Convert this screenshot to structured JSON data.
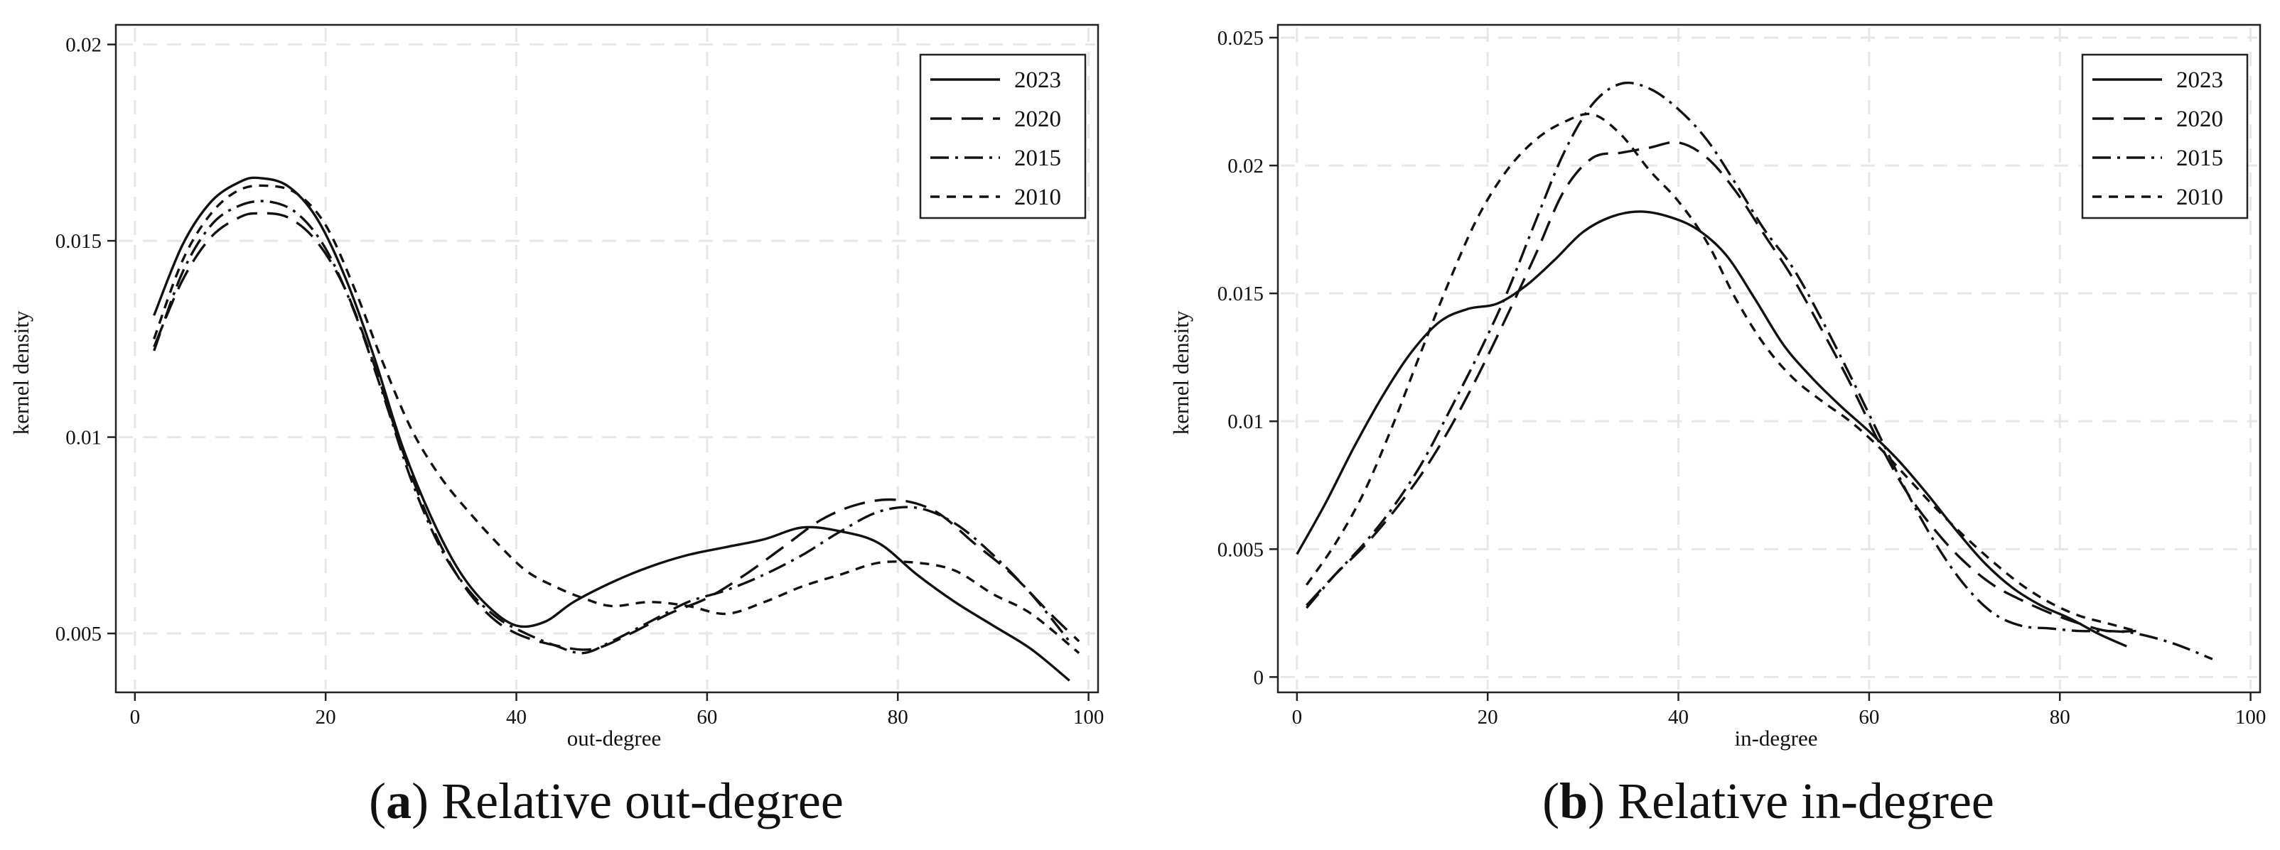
{
  "chart_data": [
    {
      "type": "line",
      "caption_letter": "a",
      "caption_text": "Relative out-degree",
      "xlabel": "out-degree",
      "ylabel": "kernel density",
      "xlim": [
        -2,
        101
      ],
      "ylim": [
        0.0035,
        0.0205
      ],
      "xticks": [
        0,
        20,
        40,
        60,
        80,
        100
      ],
      "xtick_labels": [
        "0",
        "20",
        "40",
        "60",
        "80",
        "100"
      ],
      "yticks": [
        0.005,
        0.01,
        0.015,
        0.02
      ],
      "ytick_labels": [
        "0.005",
        "0.01",
        "0.015",
        "0.02"
      ],
      "grid": true,
      "legend_position": "top-right",
      "series": [
        {
          "name": "2023",
          "dash": "solid",
          "x": [
            2,
            5,
            8,
            11,
            13,
            16,
            19,
            22,
            25,
            28,
            31,
            34,
            37,
            40,
            43,
            46,
            50,
            54,
            58,
            62,
            66,
            70,
            74,
            78,
            82,
            86,
            90,
            94,
            98
          ],
          "y": [
            0.0131,
            0.0149,
            0.016,
            0.0165,
            0.0166,
            0.0164,
            0.0156,
            0.0141,
            0.0121,
            0.0098,
            0.008,
            0.0066,
            0.0057,
            0.0052,
            0.0053,
            0.0058,
            0.0063,
            0.0067,
            0.007,
            0.0072,
            0.0074,
            0.0077,
            0.0076,
            0.0073,
            0.0065,
            0.0058,
            0.0052,
            0.0046,
            0.0038
          ]
        },
        {
          "name": "2020",
          "dash": "long",
          "x": [
            2,
            5,
            8,
            11,
            13,
            16,
            19,
            22,
            25,
            28,
            31,
            34,
            37,
            40,
            44,
            48,
            52,
            56,
            60,
            64,
            68,
            72,
            76,
            80,
            84,
            88,
            92,
            96,
            99
          ],
          "y": [
            0.0123,
            0.014,
            0.0151,
            0.0156,
            0.0157,
            0.0156,
            0.015,
            0.0138,
            0.0119,
            0.0097,
            0.0078,
            0.0064,
            0.0055,
            0.005,
            0.0047,
            0.0046,
            0.005,
            0.0055,
            0.0059,
            0.0065,
            0.0072,
            0.0079,
            0.0083,
            0.0084,
            0.0081,
            0.0073,
            0.0065,
            0.0055,
            0.0048
          ]
        },
        {
          "name": "2015",
          "dash": "dashdot",
          "x": [
            2,
            5,
            8,
            11,
            14,
            17,
            20,
            23,
            26,
            29,
            32,
            35,
            38,
            41,
            44,
            47,
            50,
            54,
            58,
            62,
            66,
            70,
            74,
            78,
            82,
            86,
            90,
            94,
            98
          ],
          "y": [
            0.0122,
            0.0142,
            0.0154,
            0.0159,
            0.016,
            0.0157,
            0.0148,
            0.0132,
            0.0111,
            0.0089,
            0.0072,
            0.0061,
            0.0054,
            0.005,
            0.0047,
            0.0045,
            0.0048,
            0.0053,
            0.0058,
            0.0061,
            0.0065,
            0.007,
            0.0076,
            0.0081,
            0.0082,
            0.0078,
            0.007,
            0.006,
            0.0048
          ]
        },
        {
          "name": "2010",
          "dash": "short",
          "x": [
            2,
            5,
            8,
            11,
            14,
            17,
            20,
            23,
            26,
            29,
            32,
            35,
            38,
            41,
            44,
            47,
            50,
            54,
            58,
            62,
            66,
            70,
            74,
            78,
            82,
            86,
            90,
            94,
            99
          ],
          "y": [
            0.0125,
            0.0145,
            0.0157,
            0.0163,
            0.0164,
            0.0162,
            0.0154,
            0.0138,
            0.0119,
            0.0102,
            0.009,
            0.0081,
            0.0073,
            0.0066,
            0.0062,
            0.0059,
            0.0057,
            0.0058,
            0.0057,
            0.0055,
            0.0058,
            0.0062,
            0.0065,
            0.0068,
            0.0068,
            0.0066,
            0.006,
            0.0055,
            0.0045
          ]
        }
      ]
    },
    {
      "type": "line",
      "caption_letter": "b",
      "caption_text": "Relative in-degree",
      "xlabel": "in-degree",
      "ylabel": "kernel density",
      "xlim": [
        -2,
        101
      ],
      "ylim": [
        -0.0006,
        0.0255
      ],
      "xticks": [
        0,
        20,
        40,
        60,
        80,
        100
      ],
      "xtick_labels": [
        "0",
        "20",
        "40",
        "60",
        "80",
        "100"
      ],
      "yticks": [
        0,
        0.005,
        0.01,
        0.015,
        0.02,
        0.025
      ],
      "ytick_labels": [
        "0",
        "0.005",
        "0.01",
        "0.015",
        "0.02",
        "0.025"
      ],
      "grid": true,
      "legend_position": "top-right",
      "series": [
        {
          "name": "2023",
          "dash": "solid",
          "x": [
            0,
            3,
            6,
            9,
            12,
            15,
            18,
            21,
            24,
            27,
            30,
            33,
            36,
            39,
            42,
            45,
            48,
            51,
            54,
            57,
            60,
            63,
            66,
            69,
            72,
            75,
            78,
            81,
            84,
            87
          ],
          "y": [
            0.0048,
            0.0068,
            0.009,
            0.011,
            0.0127,
            0.0139,
            0.0144,
            0.0146,
            0.0153,
            0.0163,
            0.0174,
            0.018,
            0.0182,
            0.018,
            0.0175,
            0.0165,
            0.0148,
            0.013,
            0.0117,
            0.0106,
            0.0096,
            0.0085,
            0.0072,
            0.0058,
            0.0045,
            0.0035,
            0.0028,
            0.0023,
            0.0017,
            0.0012
          ]
        },
        {
          "name": "2020",
          "dash": "long",
          "x": [
            1,
            4,
            7,
            10,
            13,
            16,
            19,
            22,
            25,
            28,
            31,
            34,
            37,
            40,
            43,
            46,
            49,
            52,
            55,
            58,
            61,
            64,
            67,
            70,
            73,
            76,
            79,
            82,
            85,
            88
          ],
          "y": [
            0.0028,
            0.004,
            0.0051,
            0.0064,
            0.0079,
            0.0097,
            0.0118,
            0.0141,
            0.0165,
            0.019,
            0.0203,
            0.0205,
            0.0207,
            0.0209,
            0.0203,
            0.019,
            0.0173,
            0.0156,
            0.0136,
            0.0115,
            0.0092,
            0.0072,
            0.0057,
            0.0045,
            0.0036,
            0.003,
            0.0025,
            0.0021,
            0.0018,
            0.0018
          ]
        },
        {
          "name": "2015",
          "dash": "dashdot",
          "x": [
            1,
            4,
            7,
            10,
            13,
            16,
            19,
            22,
            25,
            28,
            31,
            34,
            37,
            40,
            43,
            46,
            49,
            52,
            55,
            58,
            61,
            64,
            67,
            70,
            73,
            76,
            79,
            82,
            85,
            88,
            92,
            96
          ],
          "y": [
            0.0027,
            0.004,
            0.0052,
            0.0066,
            0.0083,
            0.0104,
            0.0126,
            0.015,
            0.0178,
            0.0205,
            0.0224,
            0.0232,
            0.023,
            0.0222,
            0.021,
            0.0193,
            0.0175,
            0.016,
            0.014,
            0.0118,
            0.0095,
            0.0072,
            0.0052,
            0.0036,
            0.0025,
            0.002,
            0.0019,
            0.0018,
            0.0018,
            0.0017,
            0.0013,
            0.0007
          ]
        },
        {
          "name": "2010",
          "dash": "short",
          "x": [
            1,
            4,
            7,
            10,
            13,
            16,
            19,
            22,
            25,
            28,
            31,
            34,
            37,
            40,
            43,
            46,
            49,
            52,
            55,
            58,
            61,
            64,
            67,
            70,
            73,
            76,
            79,
            82,
            85,
            88
          ],
          "y": [
            0.0036,
            0.0052,
            0.0072,
            0.0098,
            0.0127,
            0.0155,
            0.018,
            0.0198,
            0.021,
            0.0217,
            0.022,
            0.0212,
            0.0198,
            0.0186,
            0.017,
            0.0148,
            0.013,
            0.0117,
            0.0108,
            0.01,
            0.009,
            0.0078,
            0.0066,
            0.0055,
            0.0045,
            0.0036,
            0.0029,
            0.0024,
            0.0021,
            0.0018
          ]
        }
      ]
    }
  ]
}
